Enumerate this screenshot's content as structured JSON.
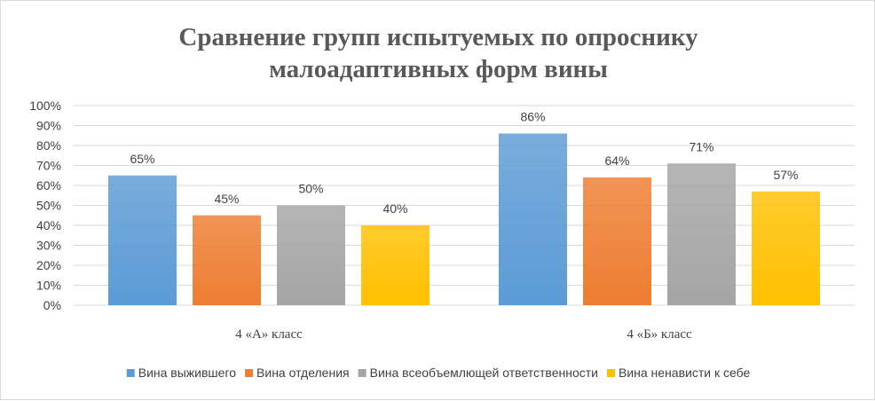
{
  "chart_data": {
    "type": "bar",
    "title": "Сравнение групп испытуемых по опроснику малоадаптивных форм вины",
    "title_lines": [
      "Сравнение групп испытуемых по опроснику",
      "малоадаптивных форм вины"
    ],
    "categories": [
      "4 «А» класс",
      "4 «Б» класс"
    ],
    "series": [
      {
        "name": "Вина выжившего",
        "values": [
          65,
          86
        ],
        "color": "#5b9bd5"
      },
      {
        "name": "Вина отделения",
        "values": [
          45,
          64
        ],
        "color": "#ed7d31"
      },
      {
        "name": "Вина всеобъемлющей ответственности",
        "values": [
          50,
          71
        ],
        "color": "#a5a5a5"
      },
      {
        "name": "Вина ненависти к себе",
        "values": [
          40,
          57
        ],
        "color": "#ffc000"
      }
    ],
    "ylim": [
      0,
      100
    ],
    "yticks": [
      0,
      10,
      20,
      30,
      40,
      50,
      60,
      70,
      80,
      90,
      100
    ],
    "value_suffix": "%",
    "grid": true,
    "legend_position": "bottom"
  }
}
